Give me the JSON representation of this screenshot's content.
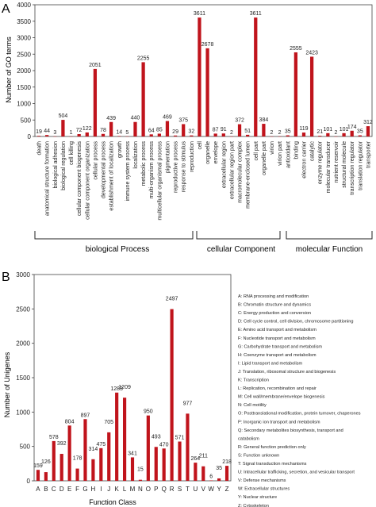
{
  "panel_a": {
    "letter": "A",
    "bar_color": "#c0141c",
    "group_labels": [
      "biological Process",
      "cellular Component",
      "molecular Function"
    ]
  },
  "panel_b": {
    "letter": "B",
    "bar_color": "#c0141c",
    "legend": [
      "A: RNA processing and modification",
      "B: Chromatin structure and dynamics",
      "C: Energy production and conversion",
      "D: Cell cycle control, cell division, chromosome partitioning",
      "E: Amino acid transport and metabolism",
      "F: Nucleotide transport and metabolism",
      "G: Carbohydrate transport and metabolism",
      "H: Coenzyme transport and metabolism",
      "I: Lipid transport and metabolism",
      "J: Translation, ribosomal structure and biogenesis",
      "K: Transcription",
      "L: Replication, recombination and repair",
      "M: Cell wall/membrane/envelope biogenesis",
      "N: Cell motility",
      "O: Posttranslational modification, protein turnover, chaperones",
      "P: Inorganic ion transport and metabolism",
      "Q: Secondary metabolites biosynthesis, transport and",
      "catabolism",
      "R: General function prediction only",
      "S: Function unknown",
      "T: Signal transduction mechanisms",
      "U: Intracellular trafficking, secretion, and vesicular transport",
      "V: Defense mechanisms",
      "W: Extracellular structures",
      "Y: Nuclear structure",
      "Z: Cytoskeleton"
    ]
  },
  "chart_data": [
    {
      "type": "bar",
      "ylabel": "Number of GO terms",
      "xlabel": "",
      "ylim": [
        0,
        4000
      ],
      "yticks": [
        0,
        500,
        1000,
        1500,
        2000,
        2500,
        3000,
        3500,
        4000
      ],
      "categories": [
        "death",
        "anatomical structure formation",
        "biological adhesion",
        "biological regulation",
        "cell killing",
        "cellular component biogenesis",
        "cellular component organization",
        "cellular process",
        "developmental process",
        "establishment of localization",
        "growth",
        "immune system process",
        "localization",
        "metabolic process",
        "multi-organism process",
        "multicellular organismal process",
        "pigmentation",
        "reproductive process",
        "response to stimulus",
        "reproduction",
        "cell",
        "organelle",
        "envelope",
        "extracellular region",
        "extracellular region part",
        "macromolecular complex",
        "membrane-enclosed lumen",
        "cell part",
        "organelle part",
        "virion",
        "virion part",
        "antioxidant",
        "binding",
        "electron carrier",
        "catalytic",
        "enzyme regulator",
        "molecular transducer",
        "nutrient reservoir",
        "structural molecule",
        "transcription regulator",
        "translation regulator",
        "transporter"
      ],
      "values": [
        19,
        44,
        3,
        504,
        1,
        72,
        122,
        2051,
        78,
        439,
        14,
        5,
        440,
        2255,
        64,
        85,
        469,
        29,
        375,
        32,
        3611,
        2678,
        87,
        91,
        2,
        372,
        51,
        3611,
        384,
        2,
        2,
        35,
        2555,
        119,
        2423,
        21,
        101,
        2,
        101,
        174,
        35,
        312
      ],
      "groups": [
        {
          "name": "biological Process",
          "start": 0,
          "end": 19
        },
        {
          "name": "cellular Component",
          "start": 20,
          "end": 30
        },
        {
          "name": "molecular Function",
          "start": 31,
          "end": 41
        }
      ]
    },
    {
      "type": "bar",
      "ylabel": "Number of Unigenes",
      "xlabel": "Function Class",
      "ylim": [
        0,
        3000
      ],
      "yticks": [
        0,
        500,
        1000,
        1500,
        2000,
        2500,
        3000
      ],
      "categories": [
        "A",
        "B",
        "C",
        "D",
        "E",
        "F",
        "G",
        "H",
        "I",
        "J",
        "K",
        "L",
        "M",
        "N",
        "O",
        "P",
        "Q",
        "R",
        "S",
        "T",
        "U",
        "V",
        "W",
        "Y",
        "Z"
      ],
      "values": [
        159,
        126,
        578,
        392,
        804,
        178,
        897,
        314,
        475,
        705,
        1283,
        1209,
        341,
        15,
        950,
        493,
        470,
        2497,
        571,
        977,
        264,
        211,
        6,
        35,
        218
      ]
    }
  ]
}
